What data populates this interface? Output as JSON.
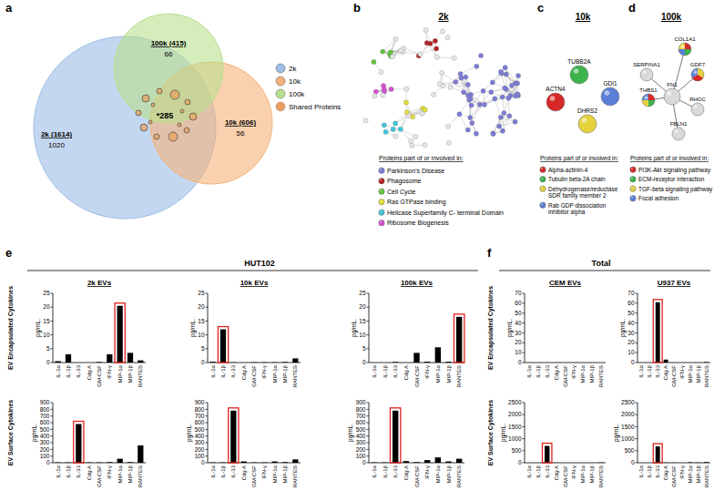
{
  "venn": {
    "letter": "a",
    "circles": [
      {
        "label": "2k (1614)",
        "count": 1020,
        "color": "#9dbde6"
      },
      {
        "label": "10k (606)",
        "count": 56,
        "color": "#f5b27a"
      },
      {
        "label": "100k (415)",
        "count": 66,
        "color": "#b9e08e"
      }
    ],
    "center_label": "*285",
    "legend": [
      {
        "name": "2k",
        "color": "#9dbde6"
      },
      {
        "name": "10k",
        "color": "#f5b27a"
      },
      {
        "name": "100k",
        "color": "#b9e08e"
      },
      {
        "name": "Shared Proteins",
        "color": "#e8a05c"
      }
    ]
  },
  "networks": [
    {
      "letter": "b",
      "title": "2k",
      "legend_title": "Proteins part of or involved in:",
      "legend": [
        {
          "name": "Parkinson's Disease",
          "color": "#7b7bd6"
        },
        {
          "name": "Phagosome",
          "color": "#b22222"
        },
        {
          "name": "Cell Cycle",
          "color": "#66c23a"
        },
        {
          "name": "Ras GTPase binding",
          "color": "#e3e03a"
        },
        {
          "name": "Helicase Superfamily C- terminal Domain",
          "color": "#3fc6d8"
        },
        {
          "name": "Ribosome Biogenesis",
          "color": "#d34fd3"
        }
      ]
    },
    {
      "letter": "c",
      "title": "10k",
      "legend_title": "Proteins part of or involved in:",
      "legend": [
        {
          "name": "Alpha-actinin-4",
          "color": "#d62828"
        },
        {
          "name": "Tubulin beta-2A chain",
          "color": "#3bb34a"
        },
        {
          "name": "Dehydrogenase/reductase SDR family member 2",
          "color": "#e6d23c"
        },
        {
          "name": "Rab GDP dissociation inhibitor alpha",
          "color": "#5b7fd6"
        }
      ],
      "nodes": [
        {
          "label": "ACTN4",
          "colors": [
            "#d62828"
          ]
        },
        {
          "label": "TUBB2A",
          "colors": [
            "#3bb34a"
          ]
        },
        {
          "label": "GDI1",
          "colors": [
            "#5b7fd6"
          ]
        },
        {
          "label": "DHRS2",
          "colors": [
            "#e6d23c"
          ]
        }
      ]
    },
    {
      "letter": "d",
      "title": "100k",
      "legend_title": "Proteins part of or involved in:",
      "legend": [
        {
          "name": "PI3K-Akt signaling pathway",
          "color": "#d62828"
        },
        {
          "name": "ECM-receptor interaction",
          "color": "#3bb34a"
        },
        {
          "name": "TGF-beta signaling pathway",
          "color": "#e6d23c"
        },
        {
          "name": "Focal adhesion",
          "color": "#5b7fd6"
        }
      ],
      "nodes": [
        {
          "label": "COL1A1",
          "colors": [
            "#d62828",
            "#3bb34a",
            "#5b7fd6",
            "#e6d23c"
          ]
        },
        {
          "label": "GDF7",
          "colors": [
            "#e6d23c",
            "#d62828",
            "#5b7fd6"
          ]
        },
        {
          "label": "RHOC",
          "colors": [
            "#d9d9d9"
          ]
        },
        {
          "label": "FBLN1",
          "colors": [
            "#d9d9d9"
          ]
        },
        {
          "label": "THBS1",
          "colors": [
            "#d62828",
            "#3bb34a",
            "#e6d23c",
            "#5b7fd6"
          ]
        },
        {
          "label": "SERPINA1",
          "colors": [
            "#d9d9d9"
          ]
        },
        {
          "label": "FN1",
          "colors": [
            "#d9d9d9"
          ]
        }
      ],
      "edges": [
        [
          6,
          0
        ],
        [
          6,
          1
        ],
        [
          6,
          2
        ],
        [
          6,
          3
        ],
        [
          6,
          4
        ],
        [
          6,
          5
        ]
      ]
    }
  ],
  "groups": [
    {
      "letter": "e",
      "title": "HUT102",
      "row_labels": [
        "EV Encapsulated Cytokines",
        "EV Surface Cytokines"
      ]
    },
    {
      "letter": "f",
      "title": "Total",
      "row_labels": [
        "EV Encapsulated Cytokines",
        "EV Surface Cytokines"
      ]
    }
  ],
  "chart_data": [
    {
      "type": "bar",
      "title": "2k EVs",
      "y_label": "pg/mL.",
      "categories": [
        "IL-1α",
        "IL-1β",
        "IL-33",
        "Cdg A",
        "GM-CSF",
        "IFN-γ",
        "MIP-1α",
        "MIP-1β",
        "RANTES"
      ],
      "values": [
        0.5,
        3,
        0,
        0,
        0.2,
        3,
        20.5,
        3.5,
        0.8
      ],
      "ylim": [
        0,
        25
      ],
      "yticks": [
        0,
        5,
        10,
        15,
        20,
        25
      ],
      "color": "#000000",
      "highlight": "MIP-1α"
    },
    {
      "type": "bar",
      "title": "10k EVs",
      "y_label": "pg/mL.",
      "categories": [
        "IL-1α",
        "IL-1β",
        "IL-33",
        "Cdg A",
        "GM-CSF",
        "IFN-γ",
        "MIP-1α",
        "MIP-1β",
        "RANTES"
      ],
      "values": [
        0.3,
        12,
        0.1,
        0,
        0.1,
        0.1,
        0.1,
        0.2,
        1.5
      ],
      "ylim": [
        0,
        25
      ],
      "yticks": [
        0,
        5,
        10,
        15,
        20,
        25
      ],
      "color": "#000000",
      "highlight": "IL-1β"
    },
    {
      "type": "bar",
      "title": "100k EVs",
      "y_label": "pg/mL.",
      "categories": [
        "IL-1α",
        "IL-1β",
        "IL-33",
        "Cdg A",
        "GM-CSF",
        "IFN-γ",
        "MIP-1α",
        "MIP-1β",
        "RANTES"
      ],
      "values": [
        0,
        0,
        0.2,
        0,
        3.5,
        0.3,
        5.5,
        0.3,
        16.5
      ],
      "ylim": [
        0,
        25
      ],
      "yticks": [
        0,
        5,
        10,
        15,
        20,
        25
      ],
      "color": "#000000",
      "highlight": "RANTES"
    },
    {
      "type": "bar",
      "y_label": "pg/mL.",
      "categories": [
        "IL-1α",
        "IL-1β",
        "IL-33",
        "Cdg A",
        "GM-CSF",
        "IFN-γ",
        "MIP-1α",
        "MIP-1β",
        "RANTES"
      ],
      "values": [
        5,
        5,
        580,
        5,
        5,
        10,
        60,
        10,
        260
      ],
      "ylim": [
        0,
        900
      ],
      "yticks": [
        0,
        100,
        200,
        300,
        400,
        500,
        600,
        700,
        800,
        900
      ],
      "color": "#000000",
      "highlight": "IL-33"
    },
    {
      "type": "bar",
      "y_label": "pg/mL.",
      "categories": [
        "IL-1α",
        "IL-1β",
        "IL-33",
        "Cdg A",
        "GM-CSF",
        "IFN-γ",
        "MIP-1α",
        "MIP-1β",
        "RANTES"
      ],
      "values": [
        5,
        5,
        780,
        20,
        5,
        5,
        20,
        10,
        50
      ],
      "ylim": [
        0,
        900
      ],
      "yticks": [
        0,
        100,
        200,
        300,
        400,
        500,
        600,
        700,
        800,
        900
      ],
      "color": "#000000",
      "highlight": "IL-33"
    },
    {
      "type": "bar",
      "y_label": "pg/mL.",
      "categories": [
        "IL-1α",
        "IL-1β",
        "IL-33",
        "Cdg A",
        "GM-CSF",
        "IFN-γ",
        "MIP-1α",
        "MIP-1β",
        "RANTES"
      ],
      "values": [
        5,
        5,
        780,
        25,
        10,
        40,
        80,
        20,
        60
      ],
      "ylim": [
        0,
        900
      ],
      "yticks": [
        0,
        100,
        200,
        300,
        400,
        500,
        600,
        700,
        800,
        900
      ],
      "color": "#000000",
      "highlight": "IL-33"
    },
    {
      "type": "bar",
      "title": "CEM EVs",
      "y_label": "pg/mL.",
      "categories": [
        "IL-1α",
        "IL-1β",
        "IL-33",
        "Cdg A",
        "GM-CSF",
        "IFN-γ",
        "MIP-1α",
        "MIP-1β",
        "RANTES"
      ],
      "values": [
        0,
        0,
        0,
        0,
        0,
        0,
        0,
        0,
        0
      ],
      "ylim": [
        0,
        70
      ],
      "yticks": [
        0,
        10,
        20,
        30,
        40,
        50,
        60,
        70
      ],
      "color": "#000000"
    },
    {
      "type": "bar",
      "title": "U937 EVs",
      "y_label": "pg/mL.",
      "categories": [
        "IL-1α",
        "IL-1β",
        "IL-33",
        "Cdg A",
        "GM-CSF",
        "IFN-γ",
        "MIP-1α",
        "MIP-1β",
        "RANTES"
      ],
      "values": [
        0,
        0,
        61,
        3,
        0,
        0,
        0,
        0,
        0.5
      ],
      "ylim": [
        0,
        70
      ],
      "yticks": [
        0,
        10,
        20,
        30,
        40,
        50,
        60,
        70
      ],
      "color": "#000000",
      "highlight": "IL-33"
    },
    {
      "type": "bar",
      "y_label": "pg/mL.",
      "categories": [
        "IL-1α",
        "IL-1β",
        "IL-33",
        "Cdg A",
        "GM-CSF",
        "IFN-γ",
        "MIP-1α",
        "MIP-1β",
        "RANTES"
      ],
      "values": [
        0,
        0,
        700,
        5,
        0,
        0,
        0,
        0,
        10
      ],
      "ylim": [
        0,
        2500
      ],
      "yticks": [
        0,
        500,
        1000,
        1500,
        2000,
        2500
      ],
      "color": "#000000",
      "highlight": "IL-33"
    },
    {
      "type": "bar",
      "y_label": "pg/mL.",
      "categories": [
        "IL-1α",
        "IL-1β",
        "IL-33",
        "Cdg A",
        "GM-CSF",
        "IFN-γ",
        "MIP-1α",
        "MIP-1β",
        "RANTES"
      ],
      "values": [
        0,
        0,
        680,
        10,
        5,
        0,
        20,
        10,
        30
      ],
      "ylim": [
        0,
        2500
      ],
      "yticks": [
        0,
        500,
        1000,
        1500,
        2000,
        2500
      ],
      "color": "#000000",
      "highlight": "IL-33"
    }
  ]
}
